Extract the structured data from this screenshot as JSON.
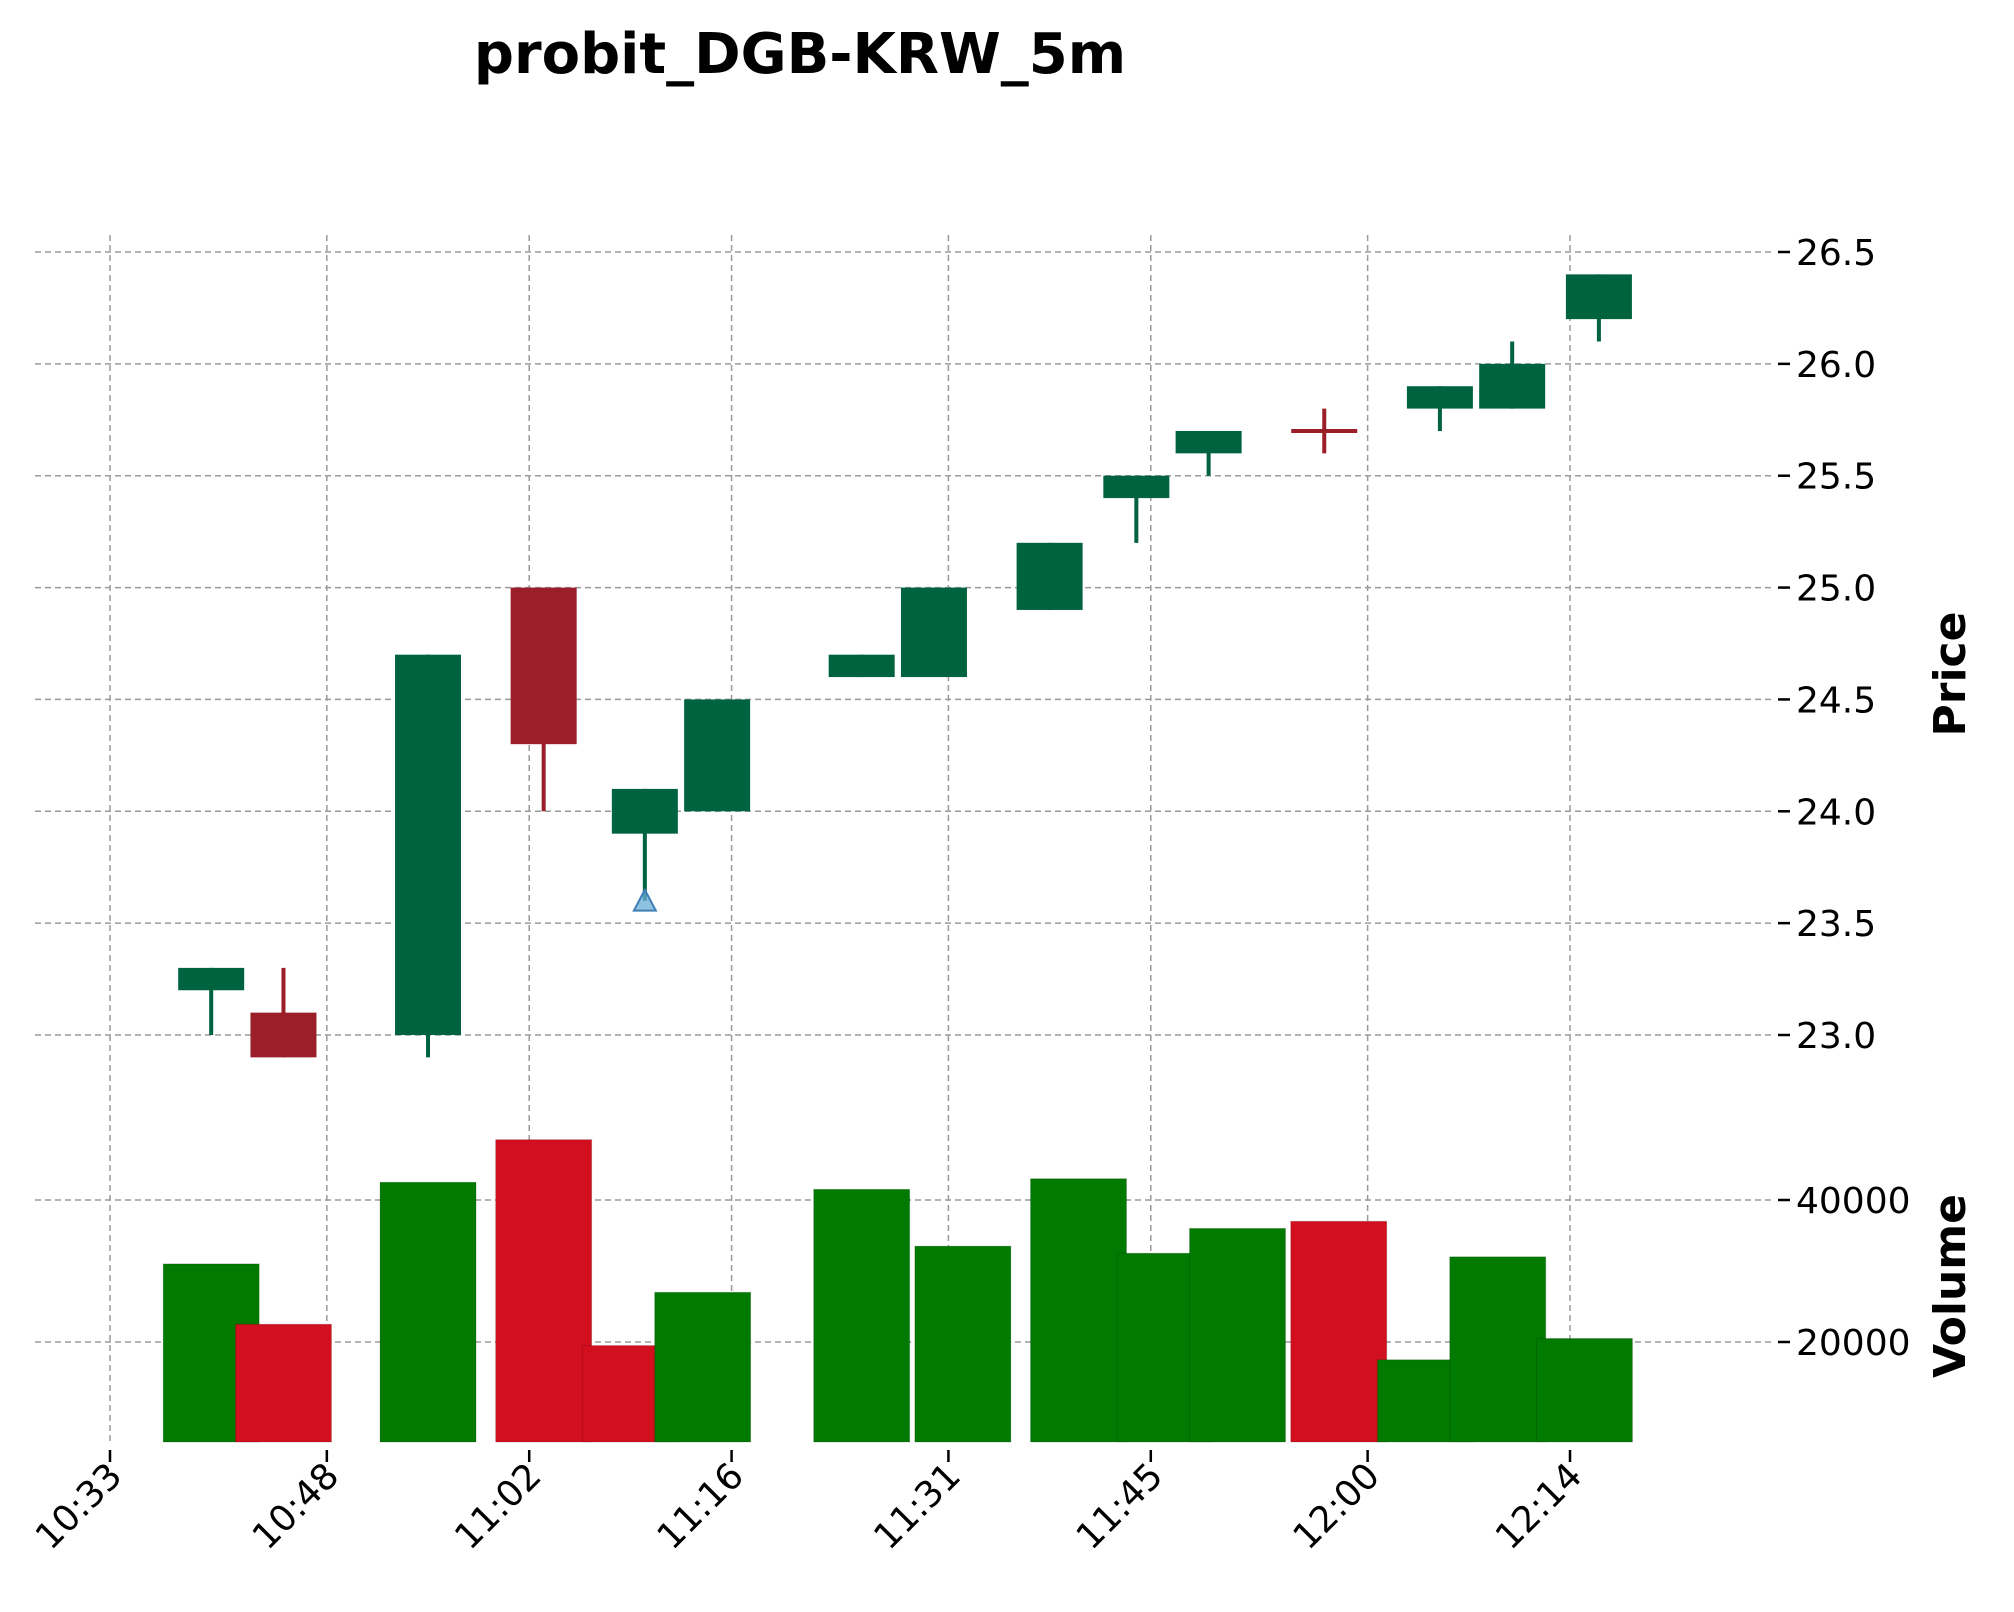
{
  "chart_data": {
    "type": "candlestick",
    "title": "probit_DGB-KRW_5m",
    "price_axis": {
      "label": "Price",
      "ylim": [
        22.6,
        26.6
      ],
      "ticks": [
        23.0,
        23.5,
        24.0,
        24.5,
        25.0,
        25.5,
        26.0,
        26.5
      ],
      "tick_labels": [
        "23.0",
        "23.5",
        "24.0",
        "24.5",
        "25.0",
        "25.5",
        "26.0",
        "26.5"
      ]
    },
    "volume_axis": {
      "label": "Volume",
      "ylim": [
        5000,
        50000
      ],
      "ticks": [
        20000,
        40000
      ],
      "tick_labels": [
        "20000",
        "40000"
      ]
    },
    "x_axis": {
      "ticks": [
        "10:33",
        "10:48",
        "11:02",
        "11:16",
        "11:31",
        "11:45",
        "12:00",
        "12:14"
      ]
    },
    "grid": true,
    "colors": {
      "up_candle": "#006340",
      "down_candle": "#9b1f29",
      "up_volume": "#007a00",
      "down_volume": "#d20f1e",
      "marker": "#6aaed6"
    },
    "candles": [
      {
        "time": "10:40",
        "open": 23.2,
        "high": 23.3,
        "low": 23.0,
        "close": 23.3,
        "dir": "up"
      },
      {
        "time": "10:45",
        "open": 23.1,
        "high": 23.3,
        "low": 22.9,
        "close": 22.9,
        "dir": "down"
      },
      {
        "time": "10:55",
        "open": 23.0,
        "high": 24.7,
        "low": 22.9,
        "close": 24.7,
        "dir": "up"
      },
      {
        "time": "11:03",
        "open": 25.0,
        "high": 25.0,
        "low": 24.0,
        "close": 24.3,
        "dir": "down"
      },
      {
        "time": "11:10",
        "open": 23.9,
        "high": 24.1,
        "low": 23.6,
        "close": 24.1,
        "dir": "up"
      },
      {
        "time": "11:15",
        "open": 24.0,
        "high": 24.5,
        "low": 24.0,
        "close": 24.5,
        "dir": "up"
      },
      {
        "time": "11:25",
        "open": 24.6,
        "high": 24.7,
        "low": 24.6,
        "close": 24.7,
        "dir": "up"
      },
      {
        "time": "11:30",
        "open": 24.6,
        "high": 25.0,
        "low": 24.6,
        "close": 25.0,
        "dir": "up"
      },
      {
        "time": "11:38",
        "open": 24.9,
        "high": 25.2,
        "low": 24.9,
        "close": 25.2,
        "dir": "up"
      },
      {
        "time": "11:44",
        "open": 25.4,
        "high": 25.5,
        "low": 25.2,
        "close": 25.5,
        "dir": "up"
      },
      {
        "time": "11:49",
        "open": 25.6,
        "high": 25.7,
        "low": 25.5,
        "close": 25.7,
        "dir": "up"
      },
      {
        "time": "11:57",
        "open": 25.7,
        "high": 25.8,
        "low": 25.6,
        "close": 25.7,
        "dir": "down"
      },
      {
        "time": "12:05",
        "open": 25.8,
        "high": 25.9,
        "low": 25.7,
        "close": 25.9,
        "dir": "up"
      },
      {
        "time": "12:10",
        "open": 25.8,
        "high": 26.1,
        "low": 25.8,
        "close": 26.0,
        "dir": "up"
      },
      {
        "time": "12:16",
        "open": 26.2,
        "high": 26.4,
        "low": 26.1,
        "close": 26.4,
        "dir": "up"
      }
    ],
    "volume": [
      {
        "time": "10:40",
        "value": 31000,
        "dir": "up"
      },
      {
        "time": "10:45",
        "value": 22500,
        "dir": "down"
      },
      {
        "time": "10:55",
        "value": 42500,
        "dir": "up"
      },
      {
        "time": "11:03",
        "value": 48500,
        "dir": "down"
      },
      {
        "time": "11:09",
        "value": 19500,
        "dir": "down"
      },
      {
        "time": "11:14",
        "value": 27000,
        "dir": "up"
      },
      {
        "time": "11:25",
        "value": 41500,
        "dir": "up"
      },
      {
        "time": "11:32",
        "value": 33500,
        "dir": "up"
      },
      {
        "time": "11:40",
        "value": 43000,
        "dir": "up"
      },
      {
        "time": "11:46",
        "value": 32500,
        "dir": "up"
      },
      {
        "time": "11:51",
        "value": 36000,
        "dir": "up"
      },
      {
        "time": "11:58",
        "value": 37000,
        "dir": "down"
      },
      {
        "time": "12:04",
        "value": 17500,
        "dir": "up"
      },
      {
        "time": "12:09",
        "value": 32000,
        "dir": "up"
      },
      {
        "time": "12:15",
        "value": 20500,
        "dir": "up"
      }
    ],
    "markers": [
      {
        "time": "11:10",
        "price": 23.6,
        "shape": "triangle-up"
      }
    ]
  }
}
